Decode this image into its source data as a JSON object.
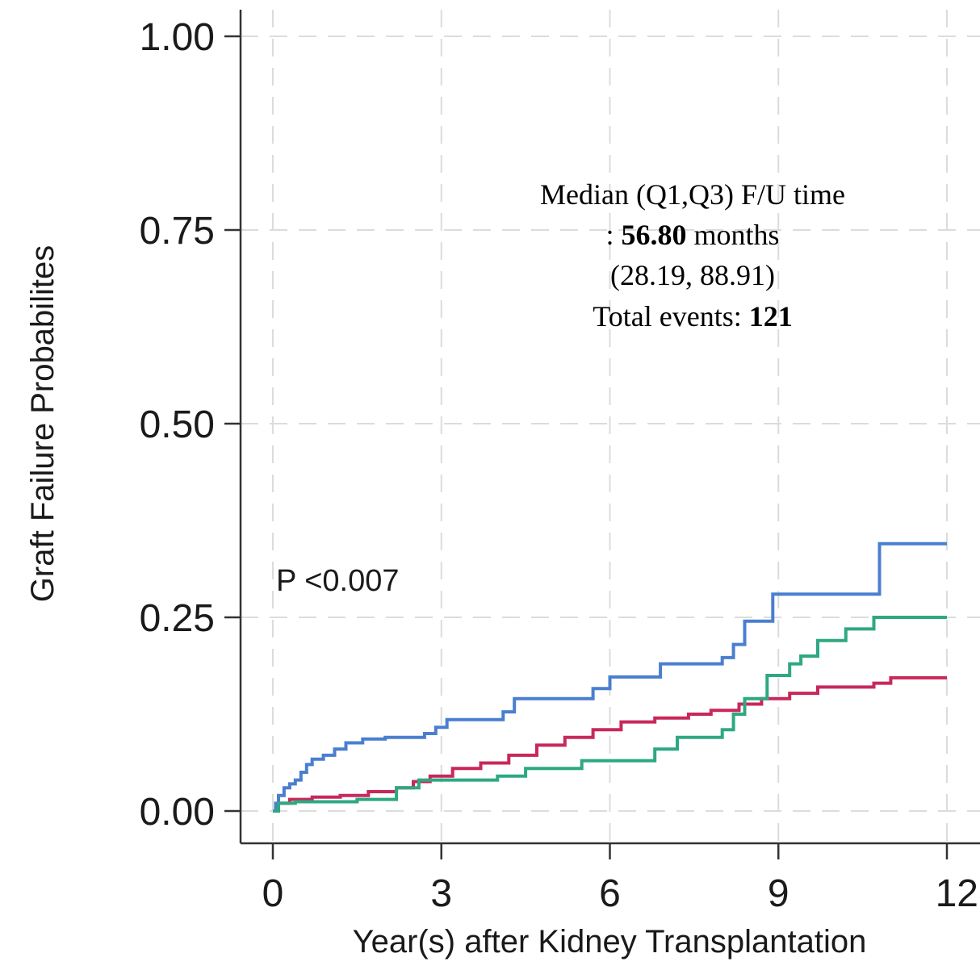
{
  "chart_data": {
    "type": "line",
    "title": "",
    "xlabel": "Year(s) after Kidney Transplantation",
    "ylabel": "Graft Failure Probabilites",
    "xlim": [
      0,
      12
    ],
    "ylim": [
      0,
      1
    ],
    "x_ticks": [
      0,
      3,
      6,
      9,
      12
    ],
    "x_tick_labels": [
      "0",
      "3",
      "6",
      "9",
      "12"
    ],
    "y_ticks": [
      0,
      0.25,
      0.5,
      0.75,
      1.0
    ],
    "y_tick_labels": [
      "0.00",
      "0.25",
      "0.50",
      "0.75",
      "1.00"
    ],
    "grid": true,
    "step": true,
    "series": [
      {
        "color": "#4a7fcf",
        "points": [
          [
            0,
            0
          ],
          [
            0.05,
            0.01
          ],
          [
            0.1,
            0.02
          ],
          [
            0.2,
            0.03
          ],
          [
            0.3,
            0.035
          ],
          [
            0.4,
            0.04
          ],
          [
            0.5,
            0.05
          ],
          [
            0.6,
            0.06
          ],
          [
            0.7,
            0.067
          ],
          [
            0.9,
            0.072
          ],
          [
            1.1,
            0.08
          ],
          [
            1.3,
            0.088
          ],
          [
            1.6,
            0.093
          ],
          [
            2.0,
            0.095
          ],
          [
            2.7,
            0.1
          ],
          [
            2.9,
            0.108
          ],
          [
            3.1,
            0.118
          ],
          [
            4.1,
            0.128
          ],
          [
            4.3,
            0.145
          ],
          [
            5.7,
            0.158
          ],
          [
            6.0,
            0.173
          ],
          [
            6.9,
            0.19
          ],
          [
            8.0,
            0.198
          ],
          [
            8.2,
            0.215
          ],
          [
            8.4,
            0.245
          ],
          [
            8.9,
            0.28
          ],
          [
            10.8,
            0.345
          ],
          [
            12.0,
            0.345
          ]
        ]
      },
      {
        "color": "#c8285a",
        "points": [
          [
            0,
            0
          ],
          [
            0.1,
            0.01
          ],
          [
            0.3,
            0.015
          ],
          [
            0.7,
            0.018
          ],
          [
            1.2,
            0.02
          ],
          [
            1.7,
            0.025
          ],
          [
            2.2,
            0.03
          ],
          [
            2.5,
            0.038
          ],
          [
            2.8,
            0.045
          ],
          [
            3.2,
            0.055
          ],
          [
            3.7,
            0.062
          ],
          [
            4.2,
            0.072
          ],
          [
            4.7,
            0.085
          ],
          [
            5.2,
            0.095
          ],
          [
            5.7,
            0.105
          ],
          [
            6.2,
            0.115
          ],
          [
            6.8,
            0.12
          ],
          [
            7.4,
            0.125
          ],
          [
            7.8,
            0.13
          ],
          [
            8.3,
            0.138
          ],
          [
            8.7,
            0.145
          ],
          [
            9.2,
            0.152
          ],
          [
            9.7,
            0.16
          ],
          [
            10.7,
            0.165
          ],
          [
            11.0,
            0.172
          ],
          [
            12.0,
            0.172
          ]
        ]
      },
      {
        "color": "#2ea883",
        "points": [
          [
            0,
            0
          ],
          [
            0.1,
            0.01
          ],
          [
            0.4,
            0.012
          ],
          [
            1.5,
            0.015
          ],
          [
            2.2,
            0.03
          ],
          [
            2.6,
            0.04
          ],
          [
            4.0,
            0.045
          ],
          [
            4.5,
            0.055
          ],
          [
            5.5,
            0.065
          ],
          [
            6.8,
            0.08
          ],
          [
            7.2,
            0.095
          ],
          [
            8.0,
            0.105
          ],
          [
            8.2,
            0.125
          ],
          [
            8.4,
            0.145
          ],
          [
            8.8,
            0.175
          ],
          [
            9.2,
            0.19
          ],
          [
            9.4,
            0.2
          ],
          [
            9.7,
            0.22
          ],
          [
            10.2,
            0.235
          ],
          [
            10.7,
            0.25
          ],
          [
            12.0,
            0.25
          ]
        ]
      }
    ],
    "annotations": {
      "stats_line1": "Median (Q1,Q3) F/U time",
      "stats_line2_prefix": ": ",
      "stats_median": "56.80",
      "stats_line2_suffix": " months",
      "stats_line3": "(28.19, 88.91)",
      "stats_line4_prefix": "Total events: ",
      "stats_events": "121",
      "pvalue": "P <0.007"
    },
    "colors": {
      "axis": "#333333",
      "grid": "#dcdcdc"
    }
  }
}
